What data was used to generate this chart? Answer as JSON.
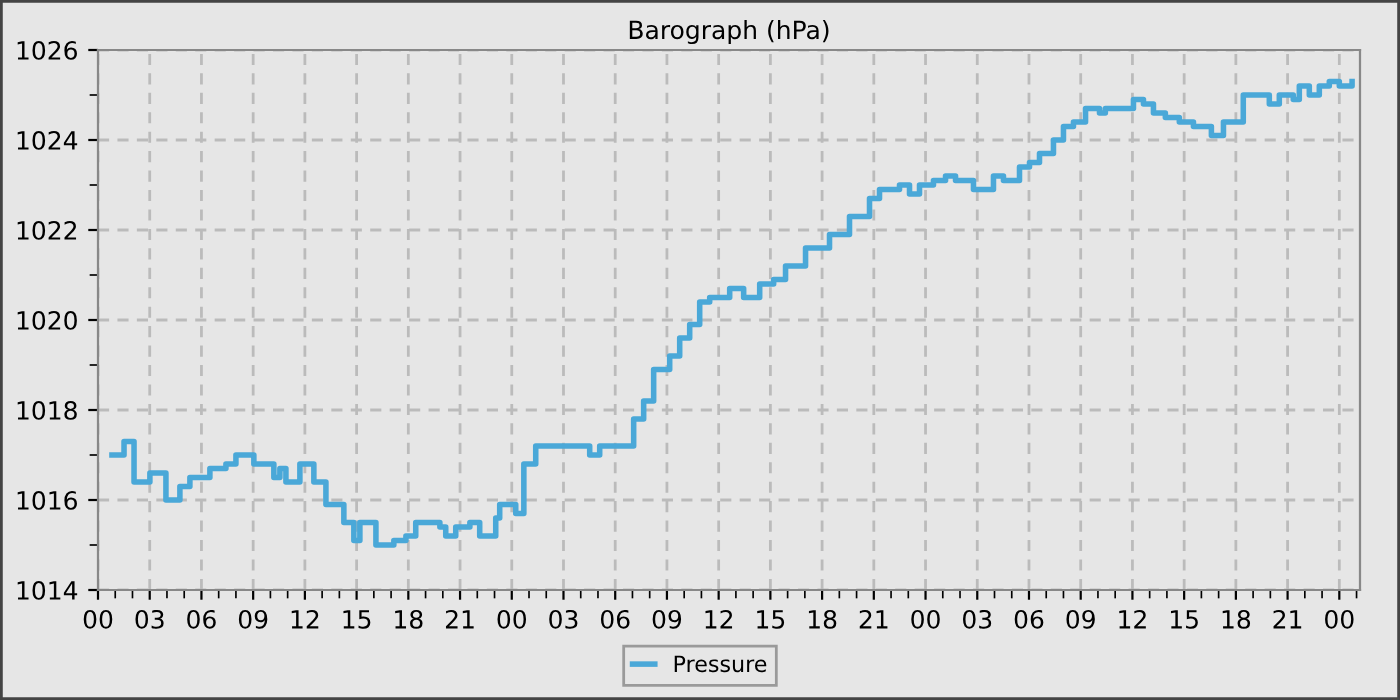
{
  "chart_data": {
    "type": "step",
    "title": "Barograph (hPa)",
    "series": [
      {
        "name": "Pressure",
        "color": "#4aa8d8",
        "x": [
          0.81,
          1.51,
          2.09,
          3.01,
          3.94,
          4.75,
          5.33,
          6.26,
          6.49,
          7.42,
          8.0,
          9.04,
          10.2,
          10.55,
          10.9,
          11.71,
          12.52,
          13.22,
          13.8,
          14.26,
          14.84,
          15.19,
          16.12,
          17.16,
          17.86,
          18.43,
          19.83,
          20.17,
          20.75,
          21.57,
          22.14,
          23.07,
          23.3,
          24.23,
          24.7,
          25.39,
          26.78,
          28.52,
          29.1,
          30.26,
          31.07,
          31.65,
          32.23,
          33.16,
          33.74,
          34.32,
          34.9,
          35.48,
          36.64,
          37.45,
          38.38,
          39.19,
          39.88,
          40.93,
          41.04,
          41.86,
          42.43,
          43.59,
          44.75,
          45.33,
          46.49,
          47.07,
          47.65,
          48.46,
          49.16,
          49.74,
          50.78,
          51.94,
          52.52,
          53.45,
          54.03,
          54.61,
          55.42,
          56.0,
          56.58,
          57.28,
          58.09,
          58.43,
          59.01,
          60.06,
          60.64,
          61.22,
          61.91,
          62.72,
          63.54,
          64.23,
          64.58,
          65.28,
          65.86,
          66.43,
          67.59,
          67.94,
          68.52,
          69.33,
          69.68,
          70.26,
          70.84,
          71.42,
          72.0,
          72.74
        ],
        "values": [
          1017.0,
          1017.3,
          1016.4,
          1016.6,
          1016.0,
          1016.3,
          1016.5,
          1016.5,
          1016.7,
          1016.8,
          1017.0,
          1016.8,
          1016.5,
          1016.7,
          1016.4,
          1016.8,
          1016.4,
          1015.9,
          1015.9,
          1015.5,
          1015.1,
          1015.5,
          1015.0,
          1015.1,
          1015.2,
          1015.5,
          1015.4,
          1015.2,
          1015.4,
          1015.5,
          1015.2,
          1015.6,
          1015.9,
          1015.7,
          1016.8,
          1017.2,
          1017.2,
          1017.0,
          1017.2,
          1017.2,
          1017.8,
          1018.2,
          1018.9,
          1019.2,
          1019.6,
          1019.9,
          1020.4,
          1020.5,
          1020.7,
          1020.5,
          1020.8,
          1020.9,
          1021.2,
          1021.2,
          1021.6,
          1021.6,
          1021.9,
          1022.3,
          1022.7,
          1022.9,
          1023.0,
          1022.8,
          1023.0,
          1023.1,
          1023.2,
          1023.1,
          1022.9,
          1023.2,
          1023.1,
          1023.4,
          1023.5,
          1023.7,
          1024.0,
          1024.3,
          1024.4,
          1024.7,
          1024.6,
          1024.7,
          1024.7,
          1024.9,
          1024.8,
          1024.6,
          1024.5,
          1024.4,
          1024.3,
          1024.3,
          1024.1,
          1024.4,
          1024.4,
          1025.0,
          1025.0,
          1024.8,
          1025.0,
          1024.9,
          1025.2,
          1025.0,
          1025.2,
          1025.3,
          1025.2,
          1025.3
        ]
      }
    ],
    "xlim": [
      0,
      73.2
    ],
    "xticks": [
      {
        "value": 0,
        "label": "00"
      },
      {
        "value": 1,
        "label": null
      },
      {
        "value": 2,
        "label": null
      },
      {
        "value": 3,
        "label": "03"
      },
      {
        "value": 4,
        "label": null
      },
      {
        "value": 5,
        "label": null
      },
      {
        "value": 6,
        "label": "06"
      },
      {
        "value": 7,
        "label": null
      },
      {
        "value": 8,
        "label": null
      },
      {
        "value": 9,
        "label": "09"
      },
      {
        "value": 10,
        "label": null
      },
      {
        "value": 11,
        "label": null
      },
      {
        "value": 12,
        "label": "12"
      },
      {
        "value": 13,
        "label": null
      },
      {
        "value": 14,
        "label": null
      },
      {
        "value": 15,
        "label": "15"
      },
      {
        "value": 16,
        "label": null
      },
      {
        "value": 17,
        "label": null
      },
      {
        "value": 18,
        "label": "18"
      },
      {
        "value": 19,
        "label": null
      },
      {
        "value": 20,
        "label": null
      },
      {
        "value": 21,
        "label": "21"
      },
      {
        "value": 22,
        "label": null
      },
      {
        "value": 23,
        "label": null
      },
      {
        "value": 24,
        "label": "00"
      },
      {
        "value": 25,
        "label": null
      },
      {
        "value": 26,
        "label": null
      },
      {
        "value": 27,
        "label": "03"
      },
      {
        "value": 28,
        "label": null
      },
      {
        "value": 29,
        "label": null
      },
      {
        "value": 30,
        "label": "06"
      },
      {
        "value": 31,
        "label": null
      },
      {
        "value": 32,
        "label": null
      },
      {
        "value": 33,
        "label": "09"
      },
      {
        "value": 34,
        "label": null
      },
      {
        "value": 35,
        "label": null
      },
      {
        "value": 36,
        "label": "12"
      },
      {
        "value": 37,
        "label": null
      },
      {
        "value": 38,
        "label": null
      },
      {
        "value": 39,
        "label": "15"
      },
      {
        "value": 40,
        "label": null
      },
      {
        "value": 41,
        "label": null
      },
      {
        "value": 42,
        "label": "18"
      },
      {
        "value": 43,
        "label": null
      },
      {
        "value": 44,
        "label": null
      },
      {
        "value": 45,
        "label": "21"
      },
      {
        "value": 46,
        "label": null
      },
      {
        "value": 47,
        "label": null
      },
      {
        "value": 48,
        "label": "00"
      },
      {
        "value": 49,
        "label": null
      },
      {
        "value": 50,
        "label": null
      },
      {
        "value": 51,
        "label": "03"
      },
      {
        "value": 52,
        "label": null
      },
      {
        "value": 53,
        "label": null
      },
      {
        "value": 54,
        "label": "06"
      },
      {
        "value": 55,
        "label": null
      },
      {
        "value": 56,
        "label": null
      },
      {
        "value": 57,
        "label": "09"
      },
      {
        "value": 58,
        "label": null
      },
      {
        "value": 59,
        "label": null
      },
      {
        "value": 60,
        "label": "12"
      },
      {
        "value": 61,
        "label": null
      },
      {
        "value": 62,
        "label": null
      },
      {
        "value": 63,
        "label": "15"
      },
      {
        "value": 64,
        "label": null
      },
      {
        "value": 65,
        "label": null
      },
      {
        "value": 66,
        "label": "18"
      },
      {
        "value": 67,
        "label": null
      },
      {
        "value": 68,
        "label": null
      },
      {
        "value": 69,
        "label": "21"
      },
      {
        "value": 70,
        "label": null
      },
      {
        "value": 71,
        "label": null
      },
      {
        "value": 72,
        "label": "00"
      },
      {
        "value": 73,
        "label": null
      }
    ],
    "ylim": [
      1014,
      1026
    ],
    "yticks": [
      1014,
      {
        "value": 1015,
        "label": null
      },
      1016,
      {
        "value": 1017,
        "label": null
      },
      1018,
      {
        "value": 1019,
        "label": null
      },
      1020,
      {
        "value": 1021,
        "label": null
      },
      1022,
      {
        "value": 1023,
        "label": null
      },
      1024,
      {
        "value": 1025,
        "label": null
      },
      1026
    ],
    "grid": true,
    "legend": "bottom",
    "line_style": "solid",
    "marker": "none"
  }
}
